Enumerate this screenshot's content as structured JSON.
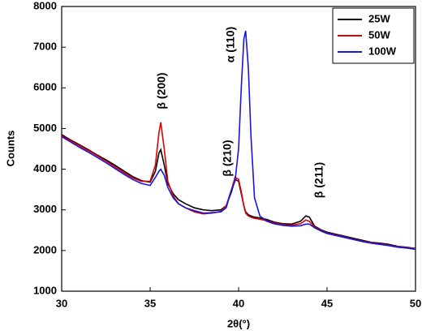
{
  "chart_data": {
    "type": "line",
    "x_label": "2θ(°)",
    "y_label": "Counts",
    "annotations": [
      "β (200)",
      "α (110)",
      "β (210)",
      "β (211)"
    ],
    "xlim": [
      30,
      50
    ],
    "xticks": [
      30,
      35,
      40,
      45,
      50
    ],
    "ylim": [
      1000,
      8000
    ],
    "yticks": [
      1000,
      2000,
      3000,
      4000,
      5000,
      6000,
      7000,
      8000
    ],
    "legend": "upper right",
    "x": [
      30,
      30.5,
      31,
      31.5,
      32,
      32.5,
      33,
      33.5,
      34,
      34.5,
      35,
      35.3,
      35.5,
      35.6,
      35.8,
      36,
      36.3,
      36.6,
      37,
      37.5,
      38,
      38.5,
      39,
      39.3,
      39.6,
      39.8,
      40,
      40.15,
      40.3,
      40.4,
      40.55,
      40.7,
      40.9,
      41.2,
      41.6,
      42,
      42.5,
      43,
      43.5,
      43.8,
      44,
      44.3,
      44.7,
      45,
      45.5,
      46,
      46.5,
      47,
      47.5,
      48,
      48.5,
      49,
      49.5,
      50
    ],
    "series": [
      {
        "name": "25W",
        "color": "#000000",
        "values": [
          4850,
          4720,
          4600,
          4480,
          4350,
          4230,
          4100,
          3960,
          3820,
          3720,
          3680,
          3950,
          4400,
          4480,
          4100,
          3650,
          3400,
          3250,
          3150,
          3050,
          3000,
          2980,
          3000,
          3100,
          3450,
          3750,
          3700,
          3400,
          3100,
          2950,
          2880,
          2850,
          2820,
          2800,
          2760,
          2700,
          2660,
          2650,
          2720,
          2850,
          2820,
          2600,
          2500,
          2450,
          2400,
          2350,
          2300,
          2250,
          2200,
          2180,
          2150,
          2100,
          2080,
          2050
        ]
      },
      {
        "name": "50W",
        "color": "#e00000",
        "values": [
          4820,
          4700,
          4580,
          4460,
          4330,
          4200,
          4060,
          3920,
          3790,
          3700,
          3700,
          4100,
          4900,
          5150,
          4500,
          3700,
          3350,
          3150,
          3050,
          2950,
          2900,
          2920,
          2960,
          3100,
          3500,
          3800,
          3750,
          3450,
          3100,
          2920,
          2850,
          2820,
          2790,
          2770,
          2730,
          2680,
          2640,
          2620,
          2660,
          2750,
          2720,
          2580,
          2480,
          2430,
          2380,
          2330,
          2280,
          2230,
          2190,
          2160,
          2130,
          2090,
          2070,
          2040
        ]
      },
      {
        "name": "100W",
        "color": "#1414e6",
        "values": [
          4800,
          4670,
          4540,
          4420,
          4290,
          4160,
          4020,
          3880,
          3750,
          3650,
          3600,
          3800,
          3950,
          4000,
          3850,
          3550,
          3300,
          3150,
          3050,
          2980,
          2920,
          2930,
          2950,
          3050,
          3500,
          3700,
          4500,
          6000,
          7200,
          7400,
          6500,
          4800,
          3300,
          2850,
          2720,
          2660,
          2620,
          2600,
          2610,
          2650,
          2650,
          2560,
          2470,
          2420,
          2370,
          2320,
          2270,
          2220,
          2180,
          2150,
          2120,
          2080,
          2060,
          2030
        ]
      }
    ]
  }
}
